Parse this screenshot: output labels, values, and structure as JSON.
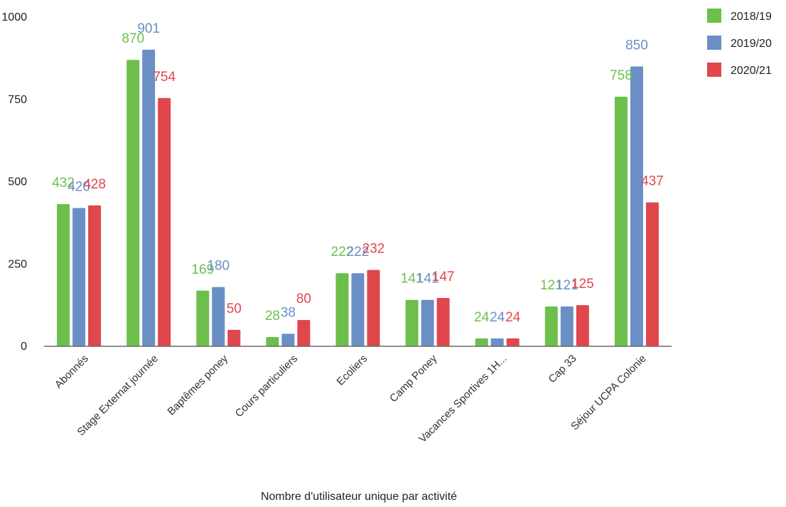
{
  "chart_data": {
    "type": "bar",
    "xlabel": "Nombre d'utilisateur unique par activité",
    "ylabel": "",
    "ylim": [
      0,
      1000
    ],
    "yticks": [
      0,
      250,
      500,
      750,
      1000
    ],
    "grid": false,
    "legend_position": "top-right",
    "categories": [
      "Abonnés",
      "Stage Externat journée",
      "Baptêmes poney",
      "Cours particuliers",
      "Ecoliers",
      "Camp Poney",
      "Vacances Sportives 1H...",
      "Cap 33",
      "Séjour UCPA Colonie"
    ],
    "series": [
      {
        "name": "2018/19",
        "color": "#6dbf4b",
        "values": [
          432,
          870,
          169,
          28,
          222,
          141,
          24,
          121,
          758
        ]
      },
      {
        "name": "2019/20",
        "color": "#6a8fc4",
        "values": [
          420,
          901,
          180,
          38,
          222,
          141,
          24,
          121,
          850
        ]
      },
      {
        "name": "2020/21",
        "color": "#e0474c",
        "values": [
          428,
          754,
          50,
          80,
          232,
          147,
          24,
          125,
          437
        ]
      }
    ]
  }
}
